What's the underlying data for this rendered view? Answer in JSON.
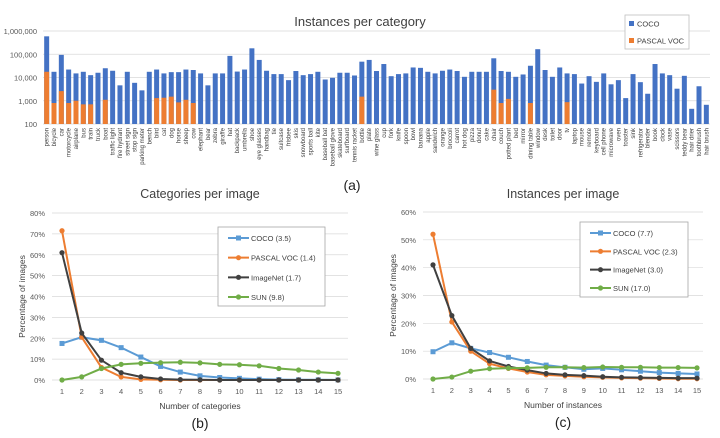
{
  "chart_data": [
    {
      "type": "bar",
      "title": "Instances per category",
      "panel_label": "(a)",
      "yscale": "log",
      "ylim": [
        100,
        1000000
      ],
      "yticks": [
        "100",
        "1,000",
        "10,000",
        "100,000",
        "1,000,000"
      ],
      "ytick_values": [
        100,
        1000,
        10000,
        100000,
        1000000
      ],
      "grid": true,
      "legend_position": "top-right",
      "categories": [
        "person",
        "bicycle",
        "car",
        "motorcycle",
        "airplane",
        "bus",
        "train",
        "truck",
        "boat",
        "traffic light",
        "fire hydrant",
        "street sign",
        "stop sign",
        "parking meter",
        "bench",
        "bird",
        "cat",
        "dog",
        "horse",
        "sheep",
        "cow",
        "elephant",
        "bear",
        "zebra",
        "giraffe",
        "hat",
        "backpack",
        "umbrella",
        "shoe",
        "eye glasses",
        "handbag",
        "tie",
        "suitcase",
        "frisbee",
        "skis",
        "snowboard",
        "sports ball",
        "kite",
        "baseball bat",
        "baseball glove",
        "skateboard",
        "surfboard",
        "tennis racket",
        "bottle",
        "plate",
        "wine glass",
        "cup",
        "fork",
        "knife",
        "spoon",
        "bowl",
        "banana",
        "apple",
        "sandwich",
        "orange",
        "broccoli",
        "carrot",
        "hot dog",
        "pizza",
        "donut",
        "cake",
        "chair",
        "couch",
        "potted plant",
        "bed",
        "mirror",
        "dining table",
        "window",
        "desk",
        "toilet",
        "door",
        "tv",
        "laptop",
        "mouse",
        "remote",
        "keyboard",
        "cell phone",
        "microwave",
        "oven",
        "toaster",
        "sink",
        "refrigerator",
        "blender",
        "book",
        "clock",
        "vase",
        "scissors",
        "teddy bear",
        "hair drier",
        "toothbrush",
        "hair brush"
      ],
      "series": [
        {
          "name": "COCO",
          "color": "#4472c4",
          "values": [
            590000,
            17600,
            94000,
            22000,
            15000,
            17600,
            12600,
            16000,
            25000,
            19500,
            4600,
            17600,
            5900,
            2800,
            17600,
            22000,
            15000,
            17000,
            17000,
            22000,
            21000,
            15000,
            4600,
            15000,
            15000,
            85000,
            18000,
            22000,
            180000,
            57000,
            19500,
            14000,
            14000,
            7700,
            19000,
            12600,
            14000,
            17600,
            8200,
            9700,
            16000,
            16000,
            12200,
            48000,
            57000,
            19000,
            38000,
            11400,
            14000,
            15000,
            27000,
            26000,
            17600,
            15000,
            19500,
            22000,
            19000,
            10700,
            17600,
            17600,
            17600,
            67000,
            19000,
            17600,
            10700,
            13500,
            32000,
            165000,
            21000,
            10700,
            27000,
            15000,
            14000,
            5500,
            11400,
            6500,
            15000,
            5100,
            7700,
            1300,
            14000,
            6300,
            2000,
            38000,
            15000,
            12600,
            3300,
            11800,
            450,
            4200,
            670
          ]
        },
        {
          "name": "PASCAL VOC",
          "color": "#ed7d31",
          "values": [
            17600,
            800,
            2600,
            800,
            1000,
            700,
            700,
            null,
            1100,
            null,
            null,
            null,
            null,
            null,
            null,
            1300,
            1350,
            1500,
            850,
            1100,
            800,
            null,
            null,
            null,
            null,
            null,
            null,
            null,
            null,
            null,
            null,
            null,
            null,
            null,
            null,
            null,
            null,
            null,
            null,
            null,
            null,
            null,
            null,
            1500,
            null,
            null,
            null,
            null,
            null,
            null,
            null,
            null,
            null,
            null,
            null,
            null,
            null,
            null,
            null,
            null,
            null,
            3000,
            800,
            1200,
            null,
            null,
            800,
            null,
            null,
            null,
            null,
            870,
            null,
            null,
            null,
            null,
            null,
            null,
            null,
            null,
            null,
            null,
            null,
            null,
            null,
            null,
            null,
            null,
            null,
            null,
            null
          ]
        }
      ]
    },
    {
      "type": "line",
      "title": "Categories per image",
      "panel_label": "(b)",
      "xlabel": "Number of categories",
      "ylabel": "Percentage of images",
      "x": [
        1,
        2,
        3,
        4,
        5,
        6,
        7,
        8,
        9,
        10,
        11,
        12,
        13,
        14,
        15
      ],
      "ylim": [
        0,
        80
      ],
      "yticks": [
        "0%",
        "10%",
        "20%",
        "30%",
        "40%",
        "50%",
        "60%",
        "70%",
        "80%"
      ],
      "grid": true,
      "legend_position": "top-right",
      "series": [
        {
          "name": "COCO (3.5)",
          "color": "#5b9bd5",
          "marker": "square",
          "values": [
            17.5,
            20.5,
            19,
            15.5,
            11,
            6.5,
            3.8,
            2,
            1.2,
            0.8,
            0.4,
            0.2,
            0.1,
            0.1,
            0.05
          ]
        },
        {
          "name": "PASCAL VOC (1.4)",
          "color": "#ed7d31",
          "marker": "circle",
          "values": [
            71.5,
            20.5,
            6,
            1.5,
            0.3,
            0.1,
            0,
            0,
            0,
            0,
            0,
            0,
            0,
            0,
            0
          ]
        },
        {
          "name": "ImageNet (1.7)",
          "color": "#404040",
          "marker": "circle",
          "values": [
            61,
            22.5,
            9.5,
            3.5,
            1.5,
            0.5,
            0.2,
            0.1,
            0,
            0,
            0,
            0,
            0,
            0,
            0
          ]
        },
        {
          "name": "SUN (9.8)",
          "color": "#70ad47",
          "marker": "circle",
          "values": [
            0,
            1.5,
            5.5,
            7.5,
            8,
            8.3,
            8.5,
            8.2,
            7.5,
            7.3,
            6.8,
            5.5,
            4.8,
            3.8,
            3.2
          ]
        }
      ]
    },
    {
      "type": "line",
      "title": "Instances per image",
      "panel_label": "(c)",
      "xlabel": "Number of instances",
      "ylabel": "Percentage of images",
      "x": [
        1,
        2,
        3,
        4,
        5,
        6,
        7,
        8,
        9,
        10,
        11,
        12,
        13,
        14,
        15
      ],
      "ylim": [
        0,
        60
      ],
      "yticks": [
        "0%",
        "10%",
        "20%",
        "30%",
        "40%",
        "50%",
        "60%"
      ],
      "grid": true,
      "legend_position": "top-right",
      "series": [
        {
          "name": "COCO (7.7)",
          "color": "#5b9bd5",
          "marker": "square",
          "values": [
            9.8,
            13,
            11,
            9.5,
            7.8,
            6.3,
            5,
            4.2,
            3.5,
            3.8,
            3.3,
            2.8,
            2.3,
            2,
            1.8
          ]
        },
        {
          "name": "PASCAL VOC (2.3)",
          "color": "#ed7d31",
          "marker": "circle",
          "values": [
            52,
            20.5,
            10,
            5.5,
            3.8,
            2.5,
            1.5,
            1.1,
            0.8,
            0.6,
            0.4,
            0.3,
            0.2,
            0.1,
            0.1
          ]
        },
        {
          "name": "ImageNet (3.0)",
          "color": "#404040",
          "marker": "circle",
          "values": [
            41,
            22.8,
            11,
            6.5,
            4.5,
            3.2,
            2,
            1.5,
            1.2,
            0.8,
            0.6,
            0.5,
            0.4,
            0.3,
            0.3
          ]
        },
        {
          "name": "SUN (17.0)",
          "color": "#70ad47",
          "marker": "circle",
          "values": [
            0,
            0.7,
            2.8,
            3.7,
            3.9,
            4,
            4.2,
            4.2,
            4.1,
            4.3,
            4.2,
            4.2,
            4.1,
            4.1,
            4.0
          ]
        }
      ]
    }
  ]
}
